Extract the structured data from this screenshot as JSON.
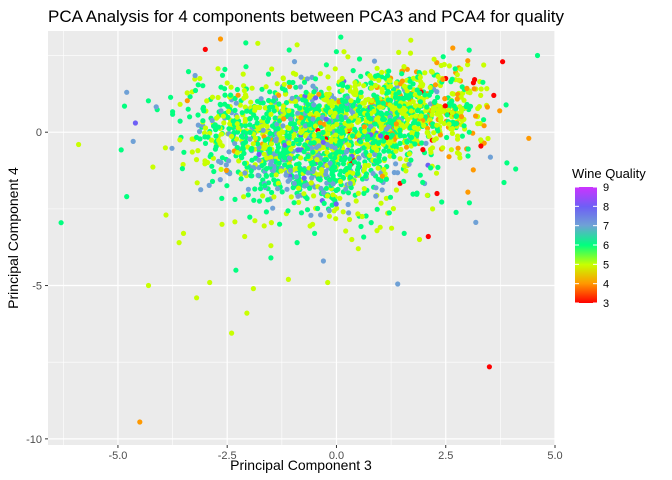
{
  "chart_data": {
    "type": "scatter",
    "title": "PCA Analysis for 4 components between PCA3 and PCA4 for quality",
    "xlabel": "Principal Component 3",
    "ylabel": "Principal Component 4",
    "xlim": [
      -6.6,
      5.0
    ],
    "ylim": [
      -10.2,
      3.3
    ],
    "x_ticks": [
      -5.0,
      -2.5,
      0.0,
      2.5,
      5.0
    ],
    "x_tick_labels": [
      "-5.0",
      "-2.5",
      "0.0",
      "2.5",
      "5.0"
    ],
    "y_ticks": [
      -10,
      -5,
      0
    ],
    "y_tick_labels": [
      "-10",
      "-5",
      "0"
    ],
    "grid": true,
    "legend": {
      "title": "Wine Quality",
      "position": "right",
      "labels": [
        "9",
        "8",
        "7",
        "6",
        "5",
        "4",
        "3"
      ],
      "values": [
        9,
        8,
        7,
        6,
        5,
        4,
        3
      ],
      "colorbar": {
        "min": 3,
        "max": 9
      }
    },
    "colors": {
      "panel_background": "#ebebeb",
      "gridline": "#ffffff",
      "q3": "#ff0000",
      "q4": "#ff9900",
      "q5": "#c8ff00",
      "q6": "#00ff7f",
      "q7": "#6fa1d6",
      "q8": "#6e5ff5",
      "q9": "#cc33ff"
    },
    "points": [
      {
        "x": -6.3,
        "y": -2.95,
        "q": 6
      },
      {
        "x": -5.9,
        "y": -0.4,
        "q": 5
      },
      {
        "x": -4.85,
        "y": 0.85,
        "q": 6
      },
      {
        "x": -4.8,
        "y": -2.1,
        "q": 6
      },
      {
        "x": -4.8,
        "y": 1.3,
        "q": 7
      },
      {
        "x": -4.65,
        "y": -0.3,
        "q": 7
      },
      {
        "x": -4.6,
        "y": 0.3,
        "q": 8
      },
      {
        "x": -4.5,
        "y": -9.45,
        "q": 4
      },
      {
        "x": -4.3,
        "y": -5.0,
        "q": 5
      },
      {
        "x": -3.9,
        "y": -2.7,
        "q": 5
      },
      {
        "x": -3.6,
        "y": -3.6,
        "q": 5
      },
      {
        "x": -3.5,
        "y": -3.3,
        "q": 5
      },
      {
        "x": -3.2,
        "y": -5.4,
        "q": 5
      },
      {
        "x": -3.0,
        "y": 2.7,
        "q": 3
      },
      {
        "x": -2.9,
        "y": -4.9,
        "q": 5
      },
      {
        "x": -2.4,
        "y": -6.55,
        "q": 5
      },
      {
        "x": -2.3,
        "y": -4.5,
        "q": 6
      },
      {
        "x": -2.1,
        "y": -3.4,
        "q": 5
      },
      {
        "x": -2.05,
        "y": -5.9,
        "q": 5
      },
      {
        "x": -1.9,
        "y": -5.1,
        "q": 5
      },
      {
        "x": -1.5,
        "y": -3.7,
        "q": 5
      },
      {
        "x": -1.5,
        "y": -4.1,
        "q": 6
      },
      {
        "x": -1.3,
        "y": -3.0,
        "q": 6
      },
      {
        "x": -1.1,
        "y": -4.8,
        "q": 5
      },
      {
        "x": -0.9,
        "y": -3.6,
        "q": 6
      },
      {
        "x": -0.5,
        "y": -3.3,
        "q": 6
      },
      {
        "x": -0.3,
        "y": -4.2,
        "q": 7
      },
      {
        "x": -0.2,
        "y": -4.9,
        "q": 5
      },
      {
        "x": 0.1,
        "y": 3.1,
        "q": 6
      },
      {
        "x": 0.35,
        "y": -3.5,
        "q": 5
      },
      {
        "x": 0.5,
        "y": -3.8,
        "q": 5
      },
      {
        "x": 1.0,
        "y": -3.1,
        "q": 5
      },
      {
        "x": 1.4,
        "y": -4.95,
        "q": 7
      },
      {
        "x": 1.55,
        "y": -3.3,
        "q": 6
      },
      {
        "x": 1.9,
        "y": -3.5,
        "q": 5
      },
      {
        "x": 2.1,
        "y": -3.4,
        "q": 3
      },
      {
        "x": 2.2,
        "y": -2.5,
        "q": 5
      },
      {
        "x": 2.3,
        "y": -2.0,
        "q": 3
      },
      {
        "x": 2.5,
        "y": 1.75,
        "q": 3
      },
      {
        "x": 2.6,
        "y": 0.6,
        "q": 3
      },
      {
        "x": 3.0,
        "y": 2.2,
        "q": 5
      },
      {
        "x": 3.3,
        "y": 1.2,
        "q": 5
      },
      {
        "x": 3.5,
        "y": -7.65,
        "q": 3
      },
      {
        "x": 3.6,
        "y": 1.2,
        "q": 3
      },
      {
        "x": 3.8,
        "y": 2.3,
        "q": 3
      },
      {
        "x": 3.9,
        "y": -1.0,
        "q": 6
      },
      {
        "x": 4.1,
        "y": -1.2,
        "q": 6
      },
      {
        "x": 4.4,
        "y": -0.2,
        "q": 4
      },
      {
        "x": 4.6,
        "y": 2.5,
        "q": 6
      },
      {
        "x": -1.8,
        "y": 2.9,
        "q": 5
      },
      {
        "x": -0.9,
        "y": 2.85,
        "q": 5
      },
      {
        "x": 1.7,
        "y": 3.0,
        "q": 5
      },
      {
        "x": 2.8,
        "y": 2.1,
        "q": 4
      }
    ],
    "point_clouds": [
      {
        "cx": -0.3,
        "cy": 0.1,
        "sx": 1.15,
        "sy": 0.8,
        "n": 1000,
        "weights": {
          "3": 1,
          "4": 2,
          "5": 30,
          "6": 50,
          "7": 14,
          "8": 3
        }
      },
      {
        "cx": 1.4,
        "cy": 0.7,
        "sx": 0.75,
        "sy": 0.7,
        "n": 550,
        "weights": {
          "3": 2,
          "4": 7,
          "5": 55,
          "6": 34,
          "7": 2
        }
      },
      {
        "cx": -0.7,
        "cy": -1.3,
        "sx": 0.9,
        "sy": 0.5,
        "n": 280,
        "weights": {
          "5": 10,
          "6": 50,
          "7": 38,
          "8": 2
        }
      },
      {
        "cx": -2.2,
        "cy": 0.2,
        "sx": 0.8,
        "sy": 0.75,
        "n": 260,
        "weights": {
          "4": 3,
          "5": 40,
          "6": 45,
          "7": 12
        }
      },
      {
        "cx": 2.7,
        "cy": 0.7,
        "sx": 0.5,
        "sy": 0.85,
        "n": 140,
        "weights": {
          "3": 4,
          "4": 28,
          "5": 50,
          "6": 18
        }
      },
      {
        "cx": 0.2,
        "cy": -2.3,
        "sx": 1.1,
        "sy": 0.55,
        "n": 80,
        "weights": {
          "5": 40,
          "6": 45,
          "7": 15
        }
      }
    ]
  }
}
